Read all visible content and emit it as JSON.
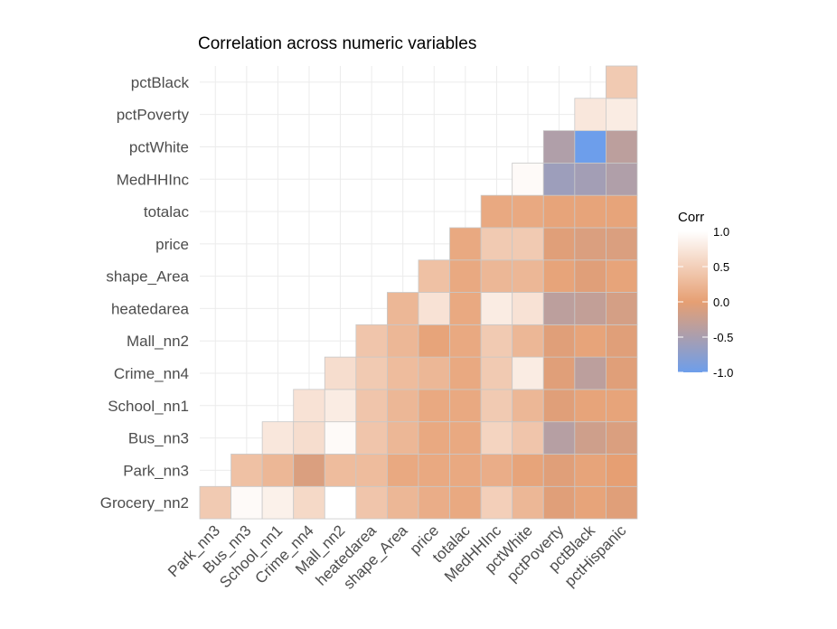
{
  "chart_data": {
    "type": "heatmap",
    "title": "Correlation across numeric variables",
    "xlabel": "",
    "ylabel": "",
    "grid": true,
    "x_categories": [
      "Park_nn3",
      "Bus_nn3",
      "School_nn1",
      "Crime_nn4",
      "Mall_nn2",
      "heatedarea",
      "shape_Area",
      "price",
      "totalac",
      "MedHHInc",
      "pctWhite",
      "pctPoverty",
      "pctBlack",
      "pctHispanic"
    ],
    "y_categories": [
      "Grocery_nn2",
      "Park_nn3",
      "Bus_nn3",
      "School_nn1",
      "Crime_nn4",
      "Mall_nn2",
      "heatedarea",
      "shape_Area",
      "price",
      "totalac",
      "MedHHInc",
      "pctWhite",
      "pctPoverty",
      "pctBlack"
    ],
    "values": [
      [
        0.45,
        0.95,
        0.85,
        0.6,
        1.0,
        0.4,
        0.25,
        0.15,
        0.1,
        0.5,
        0.25,
        -0.05,
        0.05,
        -0.05
      ],
      [
        null,
        0.35,
        0.25,
        -0.1,
        0.3,
        0.3,
        0.1,
        0.1,
        0.1,
        0.15,
        0.05,
        -0.05,
        0.05,
        0.0
      ],
      [
        null,
        null,
        0.75,
        0.65,
        0.95,
        0.4,
        0.25,
        0.1,
        0.1,
        0.55,
        0.4,
        -0.4,
        -0.2,
        -0.1
      ],
      [
        null,
        null,
        null,
        0.7,
        0.8,
        0.4,
        0.25,
        0.1,
        0.1,
        0.45,
        0.25,
        -0.05,
        0.05,
        0.05
      ],
      [
        null,
        null,
        null,
        null,
        0.65,
        0.45,
        0.3,
        0.25,
        0.1,
        0.45,
        0.8,
        -0.05,
        -0.35,
        -0.05
      ],
      [
        null,
        null,
        null,
        null,
        null,
        0.4,
        0.25,
        0.05,
        0.1,
        0.45,
        0.25,
        -0.05,
        0.05,
        -0.05
      ],
      [
        null,
        null,
        null,
        null,
        null,
        null,
        0.25,
        0.7,
        0.1,
        0.8,
        0.7,
        -0.35,
        -0.3,
        -0.15
      ],
      [
        null,
        null,
        null,
        null,
        null,
        null,
        null,
        0.35,
        0.1,
        0.25,
        0.25,
        0.05,
        -0.05,
        0.05
      ],
      [
        null,
        null,
        null,
        null,
        null,
        null,
        null,
        null,
        0.1,
        0.45,
        0.45,
        -0.05,
        -0.1,
        -0.1
      ],
      [
        null,
        null,
        null,
        null,
        null,
        null,
        null,
        null,
        null,
        0.1,
        0.1,
        0.05,
        0.05,
        0.05
      ],
      [
        null,
        null,
        null,
        null,
        null,
        null,
        null,
        null,
        null,
        null,
        0.95,
        -0.6,
        -0.55,
        -0.45
      ],
      [
        null,
        null,
        null,
        null,
        null,
        null,
        null,
        null,
        null,
        null,
        null,
        -0.45,
        -1.0,
        -0.35
      ],
      [
        null,
        null,
        null,
        null,
        null,
        null,
        null,
        null,
        null,
        null,
        null,
        null,
        0.75,
        0.8
      ],
      [
        null,
        null,
        null,
        null,
        null,
        null,
        null,
        null,
        null,
        null,
        null,
        null,
        null,
        0.45
      ]
    ],
    "legend": {
      "title": "Corr",
      "position": "right",
      "range": [
        -1.0,
        1.0
      ],
      "ticks": [
        1.0,
        0.5,
        0.0,
        -0.5,
        -1.0
      ],
      "tick_labels": [
        "1.0",
        "0.5",
        "0.0",
        "-0.5",
        "-1.0"
      ],
      "colors": {
        "low": "#6d9eeb",
        "mid": "#e69f73",
        "high": "#ffffff"
      }
    }
  }
}
